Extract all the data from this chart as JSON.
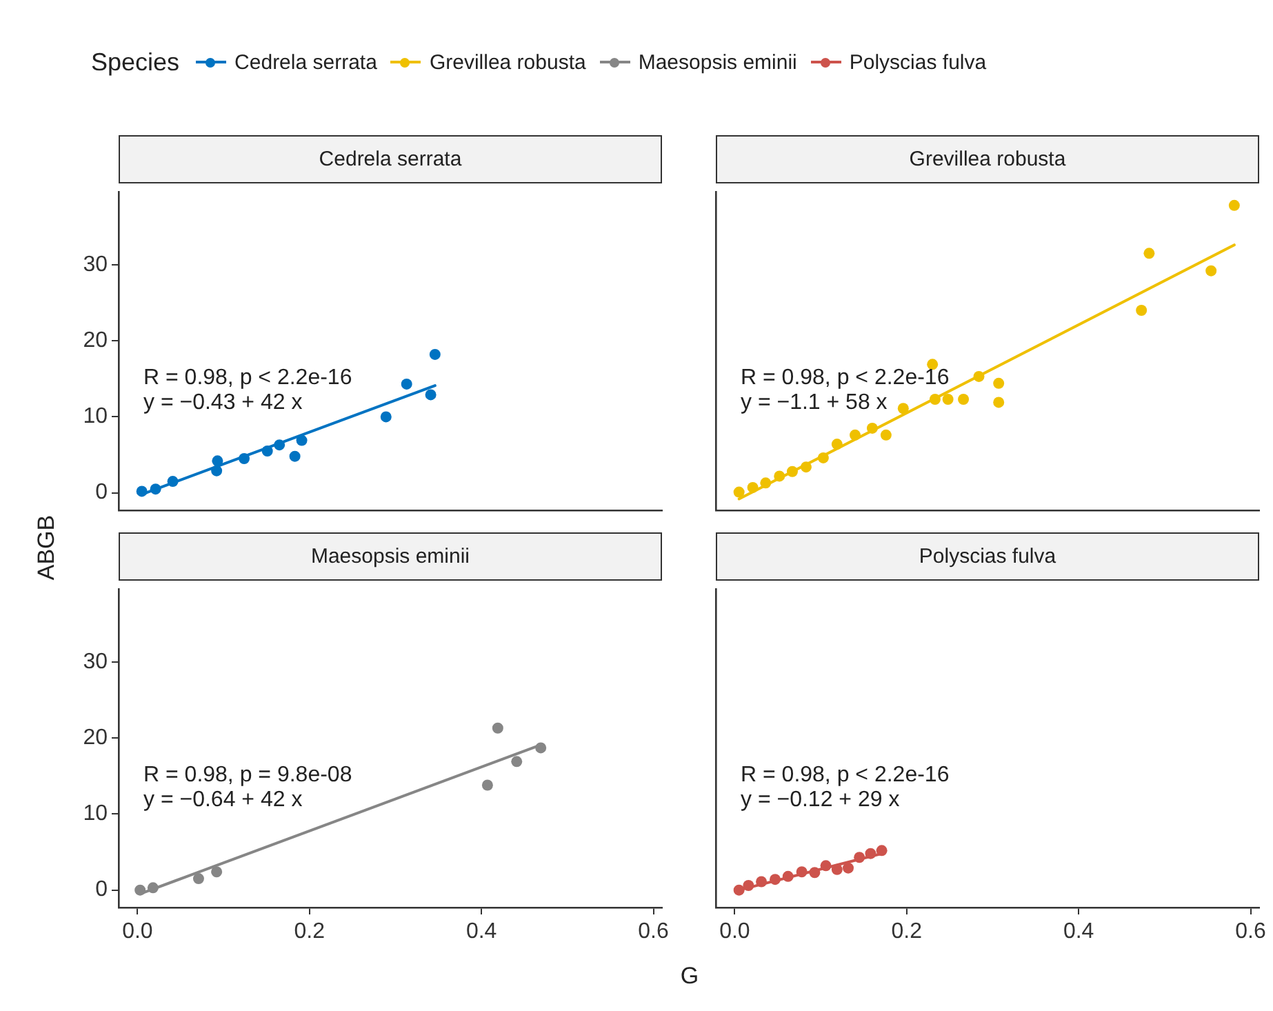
{
  "chart_data": [
    {
      "type": "scatter",
      "title": "Cedrela serrata",
      "ylabel": "ABGB",
      "legend_title": "Species",
      "legend": "top",
      "tick_labels": "y",
      "xlim": [
        -0.022,
        0.61
      ],
      "ylim": [
        -2.3,
        39.6
      ],
      "yticks": [
        0,
        10,
        20,
        30
      ],
      "grid": false,
      "annotations": [
        "R = 0.98, p < 2.2e-16",
        "y = −0.43 + 42 x"
      ],
      "series": [
        {
          "type": "scatter",
          "name": "Cedrela serrata",
          "color": "#0073c2",
          "marker": "circle",
          "x": [
            0.005,
            0.021,
            0.041,
            0.092,
            0.093,
            0.124,
            0.151,
            0.165,
            0.183,
            0.191,
            0.289,
            0.313,
            0.341,
            0.346
          ],
          "values": [
            0.2,
            0.5,
            1.5,
            2.9,
            4.2,
            4.5,
            5.5,
            6.3,
            4.8,
            6.9,
            10.0,
            14.3,
            12.9,
            18.2
          ]
        },
        {
          "type": "line",
          "color": "#0073c2",
          "marker": "none",
          "line_style": "solid",
          "x": [
            0.005,
            0.346
          ],
          "values": [
            -0.2,
            14.1
          ]
        }
      ]
    },
    {
      "type": "scatter",
      "title": "Grevillea robusta",
      "legend": "top",
      "tick_labels": false,
      "xlim": [
        -0.022,
        0.61
      ],
      "ylim": [
        -2.3,
        39.6
      ],
      "yticks": [
        0,
        10,
        20,
        30
      ],
      "grid": false,
      "annotations": [
        "R = 0.98, p < 2.2e-16",
        "y = −1.1 + 58 x"
      ],
      "series": [
        {
          "type": "scatter",
          "name": "Grevillea robusta",
          "color": "#efc000",
          "marker": "circle",
          "x": [
            0.005,
            0.021,
            0.036,
            0.052,
            0.067,
            0.083,
            0.103,
            0.119,
            0.14,
            0.16,
            0.176,
            0.196,
            0.23,
            0.233,
            0.248,
            0.266,
            0.284,
            0.307,
            0.307,
            0.473,
            0.482,
            0.554,
            0.581
          ],
          "values": [
            0.1,
            0.7,
            1.3,
            2.2,
            2.8,
            3.4,
            4.6,
            6.4,
            7.6,
            8.5,
            7.6,
            11.1,
            16.9,
            12.3,
            12.3,
            12.3,
            15.3,
            14.4,
            11.9,
            24.0,
            31.5,
            29.2,
            37.8
          ]
        },
        {
          "type": "line",
          "color": "#efc000",
          "marker": "none",
          "line_style": "solid",
          "x": [
            0.005,
            0.581
          ],
          "values": [
            -0.8,
            32.6
          ]
        }
      ]
    },
    {
      "type": "scatter",
      "title": "Maesopsis eminii",
      "xlabel": "G",
      "legend": "top",
      "xlim": [
        -0.022,
        0.61
      ],
      "ylim": [
        -2.3,
        39.6
      ],
      "xticks": [
        {
          "value": 0,
          "label": "0.0"
        },
        {
          "value": 0.2,
          "label": "0.2"
        },
        {
          "value": 0.4,
          "label": "0.4"
        },
        {
          "value": 0.6,
          "label": "0.6"
        }
      ],
      "yticks": [
        0,
        10,
        20,
        30
      ],
      "grid": false,
      "annotations": [
        "R = 0.98, p = 9.8e-08",
        "y = −0.64 + 42 x"
      ],
      "series": [
        {
          "type": "scatter",
          "name": "Maesopsis eminii",
          "color": "#868686",
          "marker": "circle",
          "x": [
            0.003,
            0.018,
            0.071,
            0.092,
            0.407,
            0.419,
            0.441,
            0.469
          ],
          "values": [
            0.0,
            0.3,
            1.5,
            2.4,
            13.8,
            21.3,
            16.9,
            18.7
          ]
        },
        {
          "type": "line",
          "color": "#868686",
          "marker": "none",
          "line_style": "solid",
          "x": [
            0.003,
            0.469
          ],
          "values": [
            -0.5,
            19.1
          ]
        }
      ]
    },
    {
      "type": "scatter",
      "title": "Polyscias fulva",
      "legend": "top",
      "tick_labels": "x",
      "xlim": [
        -0.022,
        0.61
      ],
      "ylim": [
        -2.3,
        39.6
      ],
      "xticks": [
        {
          "value": 0,
          "label": "0.0"
        },
        {
          "value": 0.2,
          "label": "0.2"
        },
        {
          "value": 0.4,
          "label": "0.4"
        },
        {
          "value": 0.6,
          "label": "0.6"
        }
      ],
      "yticks": [
        0,
        10,
        20,
        30
      ],
      "grid": false,
      "annotations": [
        "R = 0.98, p < 2.2e-16",
        "y = −0.12 + 29 x"
      ],
      "series": [
        {
          "type": "scatter",
          "name": "Polyscias fulva",
          "color": "#cd534c",
          "marker": "circle",
          "x": [
            0.005,
            0.016,
            0.031,
            0.047,
            0.062,
            0.078,
            0.093,
            0.106,
            0.119,
            0.132,
            0.145,
            0.158,
            0.171
          ],
          "values": [
            0.0,
            0.6,
            1.1,
            1.4,
            1.8,
            2.4,
            2.3,
            3.2,
            2.7,
            2.9,
            4.3,
            4.8,
            5.2
          ]
        },
        {
          "type": "line",
          "color": "#cd534c",
          "marker": "none",
          "line_style": "solid",
          "x": [
            0.005,
            0.171
          ],
          "values": [
            0.0,
            4.8
          ]
        }
      ]
    }
  ]
}
